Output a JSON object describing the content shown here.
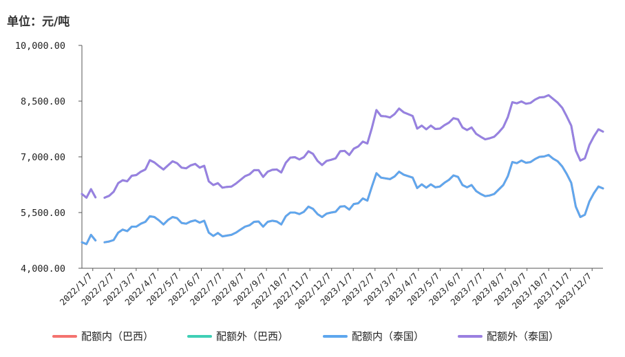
{
  "unit_label": "单位：元/吨",
  "chart_data": {
    "type": "line",
    "ylim": [
      4000,
      10000
    ],
    "y_ticks": [
      "4,000.00",
      "5,500.00",
      "7,000.00",
      "8,500.00",
      "10,000.00"
    ],
    "y_tick_values": [
      4000,
      5500,
      7000,
      8500,
      10000
    ],
    "x_tick_labels": [
      "2022/1/7",
      "2022/2/7",
      "2022/3/7",
      "2022/4/7",
      "2022/5/7",
      "2022/6/7",
      "2022/7/7",
      "2022/8/7",
      "2022/9/7",
      "2022/10/7",
      "2022/11/7",
      "2022/12/7",
      "2023/1/7",
      "2023/2/7",
      "2023/3/7",
      "2023/4/7",
      "2023/5/7",
      "2023/6/7",
      "2023/7/7",
      "2023/8/7",
      "2023/9/7",
      "2023/10/7",
      "2023/11/7",
      "2023/12/7"
    ],
    "grid": false,
    "legend_position": "bottom",
    "series": [
      {
        "name": "配额内（巴西）",
        "color": "#f4736f",
        "values": [
          4700,
          4650,
          4900,
          4750,
          null,
          4700,
          4720,
          4760,
          4960,
          5040,
          5000,
          5120,
          5120,
          5200,
          5250,
          5400,
          5380,
          5290,
          5180,
          5300,
          5380,
          5350,
          5220,
          5200,
          5260,
          5290,
          5230,
          5280,
          4960,
          4870,
          4950,
          4860,
          4880,
          4900,
          4960,
          5040,
          5120,
          5160,
          5250,
          5260,
          5120,
          5250,
          5280,
          5260,
          5180,
          5400,
          5500,
          5500,
          5460,
          5520,
          5660,
          5600,
          5460,
          5380,
          5470,
          5500,
          5520,
          5660,
          5670,
          5580,
          5730,
          5750,
          5880,
          5820,
          6200,
          6560,
          6440,
          6420,
          6400,
          6470,
          6600,
          6520,
          6480,
          6440,
          6160,
          6260,
          6170,
          6260,
          6180,
          6200,
          6300,
          6380,
          6500,
          6460,
          6240,
          6180,
          6240,
          6080,
          6000,
          5940,
          5960,
          6000,
          6120,
          6240,
          6480,
          6860,
          6830,
          6900,
          6840,
          6860,
          6940,
          7000,
          7010,
          7050,
          6950,
          6880,
          6740,
          6540,
          6300,
          5660,
          5380,
          5440,
          5800,
          6020,
          6200,
          6150
        ]
      },
      {
        "name": "配额外（巴西）",
        "color": "#3fcfb5",
        "values": [
          6000,
          5900,
          6130,
          5910,
          null,
          5900,
          5950,
          6060,
          6290,
          6370,
          6340,
          6490,
          6510,
          6600,
          6660,
          6910,
          6850,
          6750,
          6660,
          6770,
          6880,
          6830,
          6710,
          6690,
          6770,
          6810,
          6710,
          6760,
          6340,
          6240,
          6290,
          6170,
          6190,
          6200,
          6280,
          6380,
          6480,
          6530,
          6640,
          6640,
          6460,
          6600,
          6650,
          6660,
          6580,
          6840,
          6980,
          6990,
          6930,
          6990,
          7150,
          7080,
          6890,
          6780,
          6890,
          6920,
          6960,
          7150,
          7160,
          7050,
          7220,
          7280,
          7410,
          7360,
          7780,
          8260,
          8100,
          8090,
          8060,
          8150,
          8300,
          8200,
          8150,
          8100,
          7760,
          7840,
          7740,
          7840,
          7750,
          7760,
          7850,
          7920,
          8040,
          8010,
          7790,
          7720,
          7790,
          7620,
          7540,
          7470,
          7500,
          7540,
          7660,
          7800,
          8070,
          8470,
          8440,
          8490,
          8430,
          8450,
          8540,
          8600,
          8610,
          8660,
          8560,
          8460,
          8320,
          8090,
          7840,
          7170,
          6900,
          6960,
          7320,
          7550,
          7740,
          7680
        ]
      },
      {
        "name": "配额内（泰国）",
        "color": "#5ea7ee",
        "values": [
          4700,
          4650,
          4900,
          4750,
          null,
          4700,
          4720,
          4760,
          4960,
          5040,
          5000,
          5120,
          5120,
          5200,
          5250,
          5400,
          5380,
          5290,
          5180,
          5300,
          5380,
          5350,
          5220,
          5200,
          5260,
          5290,
          5230,
          5280,
          4960,
          4870,
          4950,
          4860,
          4880,
          4900,
          4960,
          5040,
          5120,
          5160,
          5250,
          5260,
          5120,
          5250,
          5280,
          5260,
          5180,
          5400,
          5500,
          5500,
          5460,
          5520,
          5660,
          5600,
          5460,
          5380,
          5470,
          5500,
          5520,
          5660,
          5670,
          5580,
          5730,
          5750,
          5880,
          5820,
          6200,
          6560,
          6440,
          6420,
          6400,
          6470,
          6600,
          6520,
          6480,
          6440,
          6160,
          6260,
          6170,
          6260,
          6180,
          6200,
          6300,
          6380,
          6500,
          6460,
          6240,
          6180,
          6240,
          6080,
          6000,
          5940,
          5960,
          6000,
          6120,
          6240,
          6480,
          6860,
          6830,
          6900,
          6840,
          6860,
          6940,
          7000,
          7010,
          7050,
          6950,
          6880,
          6740,
          6540,
          6300,
          5660,
          5380,
          5440,
          5800,
          6020,
          6200,
          6150
        ]
      },
      {
        "name": "配额外（泰国）",
        "color": "#9a7fe0",
        "values": [
          6000,
          5900,
          6130,
          5910,
          null,
          5900,
          5950,
          6060,
          6290,
          6370,
          6340,
          6490,
          6510,
          6600,
          6660,
          6910,
          6850,
          6750,
          6660,
          6770,
          6880,
          6830,
          6710,
          6690,
          6770,
          6810,
          6710,
          6760,
          6340,
          6240,
          6290,
          6170,
          6190,
          6200,
          6280,
          6380,
          6480,
          6530,
          6640,
          6640,
          6460,
          6600,
          6650,
          6660,
          6580,
          6840,
          6980,
          6990,
          6930,
          6990,
          7150,
          7080,
          6890,
          6780,
          6890,
          6920,
          6960,
          7150,
          7160,
          7050,
          7220,
          7280,
          7410,
          7360,
          7780,
          8260,
          8100,
          8090,
          8060,
          8150,
          8300,
          8200,
          8150,
          8100,
          7760,
          7840,
          7740,
          7840,
          7750,
          7760,
          7850,
          7920,
          8040,
          8010,
          7790,
          7720,
          7790,
          7620,
          7540,
          7470,
          7500,
          7540,
          7660,
          7800,
          8070,
          8470,
          8440,
          8490,
          8430,
          8450,
          8540,
          8600,
          8610,
          8660,
          8560,
          8460,
          8320,
          8090,
          7840,
          7170,
          6900,
          6960,
          7320,
          7550,
          7740,
          7680
        ]
      }
    ]
  }
}
